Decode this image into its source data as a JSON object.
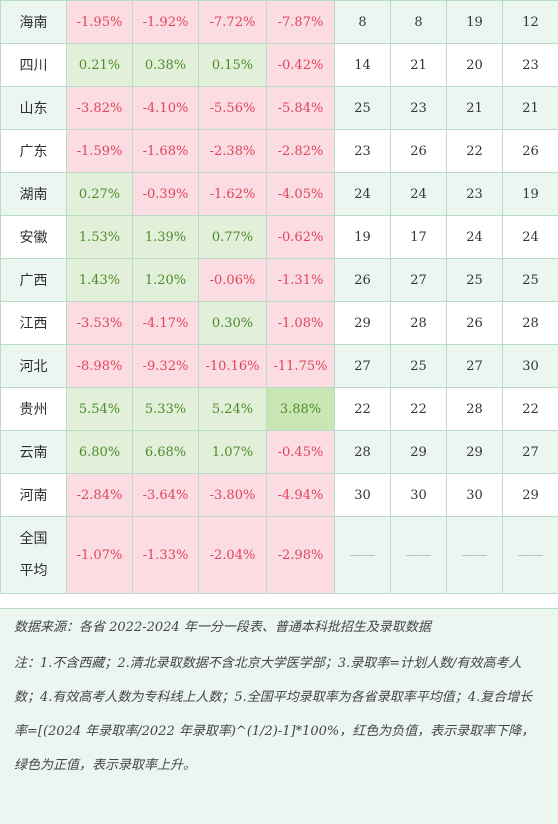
{
  "rows": [
    {
      "province": "海南",
      "g1": "-1.95%",
      "g2": "-1.92%",
      "g3": "-7.72%",
      "g4": "-7.87%",
      "r1": "8",
      "r2": "8",
      "r3": "19",
      "r4": "12"
    },
    {
      "province": "四川",
      "g1": "0.21%",
      "g2": "0.38%",
      "g3": "0.15%",
      "g4": "-0.42%",
      "r1": "14",
      "r2": "21",
      "r3": "20",
      "r4": "23"
    },
    {
      "province": "山东",
      "g1": "-3.82%",
      "g2": "-4.10%",
      "g3": "-5.56%",
      "g4": "-5.84%",
      "r1": "25",
      "r2": "23",
      "r3": "21",
      "r4": "21"
    },
    {
      "province": "广东",
      "g1": "-1.59%",
      "g2": "-1.68%",
      "g3": "-2.38%",
      "g4": "-2.82%",
      "r1": "23",
      "r2": "26",
      "r3": "22",
      "r4": "26"
    },
    {
      "province": "湖南",
      "g1": "0.27%",
      "g2": "-0.39%",
      "g3": "-1.62%",
      "g4": "-4.05%",
      "r1": "24",
      "r2": "24",
      "r3": "23",
      "r4": "19"
    },
    {
      "province": "安徽",
      "g1": "1.53%",
      "g2": "1.39%",
      "g3": "0.77%",
      "g4": "-0.62%",
      "r1": "19",
      "r2": "17",
      "r3": "24",
      "r4": "24"
    },
    {
      "province": "广西",
      "g1": "1.43%",
      "g2": "1.20%",
      "g3": "-0.06%",
      "g4": "-1.31%",
      "r1": "26",
      "r2": "27",
      "r3": "25",
      "r4": "25"
    },
    {
      "province": "江西",
      "g1": "-3.53%",
      "g2": "-4.17%",
      "g3": "0.30%",
      "g4": "-1.08%",
      "r1": "29",
      "r2": "28",
      "r3": "26",
      "r4": "28"
    },
    {
      "province": "河北",
      "g1": "-8.98%",
      "g2": "-9.32%",
      "g3": "-10.16%",
      "g4": "-11.75%",
      "r1": "27",
      "r2": "25",
      "r3": "27",
      "r4": "30"
    },
    {
      "province": "贵州",
      "g1": "5.54%",
      "g2": "5.33%",
      "g3": "5.24%",
      "g4": "3.88%",
      "r1": "22",
      "r2": "22",
      "r3": "28",
      "r4": "22"
    },
    {
      "province": "云南",
      "g1": "6.80%",
      "g2": "6.68%",
      "g3": "1.07%",
      "g4": "-0.45%",
      "r1": "28",
      "r2": "29",
      "r3": "29",
      "r4": "27"
    },
    {
      "province": "河南",
      "g1": "-2.84%",
      "g2": "-3.64%",
      "g3": "-3.80%",
      "g4": "-4.94%",
      "r1": "30",
      "r2": "30",
      "r3": "30",
      "r4": "29"
    }
  ],
  "average": {
    "province": "全国平均",
    "g1": "-1.07%",
    "g2": "-1.33%",
    "g3": "-2.04%",
    "g4": "-2.98%",
    "dash": "——"
  },
  "notes": {
    "source": "数据来源：各省 2022-2024 年一分一段表、普通本科批招生及录取数据",
    "body": "注：1.不含西藏；2.清北录取数据不含北京大学医学部；3.录取率=计划人数/有效高考人数；4.有效高考人数为专科线上人数；5.全国平均录取率为各省录取率平均值；4.复合增长率=[(2024 年录取率/2022 年录取率)^(1/2)-1]*100%，红色为负值，表示录取率下降，绿色为正值，表示录取率上升。"
  }
}
